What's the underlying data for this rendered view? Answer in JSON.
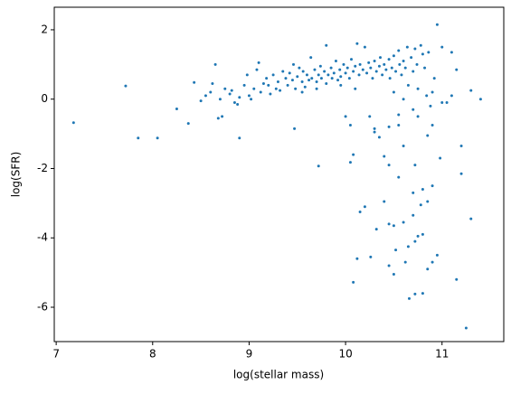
{
  "chart_data": {
    "type": "scatter",
    "xlabel": "log(stellar mass)",
    "ylabel": "log(SFR)",
    "color": "#1f77b4",
    "xlim": [
      6.98,
      11.64
    ],
    "ylim": [
      -6.99,
      2.65
    ],
    "xticks": [
      7,
      8,
      9,
      10,
      11
    ],
    "yticks": [
      -6,
      -4,
      -2,
      0,
      2
    ],
    "grid": false,
    "x": [
      7.18,
      7.72,
      7.85,
      8.05,
      8.25,
      8.37,
      8.43,
      8.65,
      8.68,
      8.9,
      9.47,
      9.72,
      10.05,
      10.08,
      10.15,
      10.12,
      10.08,
      10.26,
      10.2,
      10.32,
      10.4,
      10.45,
      10.5,
      10.45,
      10.5,
      10.52,
      10.6,
      10.65,
      10.62,
      10.66,
      10.72,
      10.8,
      10.85,
      10.9,
      10.95,
      10.75,
      10.8,
      10.72,
      10.7,
      10.78,
      10.85,
      10.7,
      10.8,
      10.9,
      10.98,
      10.72,
      10.55,
      10.4,
      10.45,
      10.6,
      10.85,
      11.25,
      11.15,
      11.2,
      11.2,
      11.3,
      10.35,
      10.25,
      10.3,
      10.45,
      10.55,
      10.0,
      10.05,
      10.55,
      10.75,
      10.9,
      11.0,
      11.05,
      11.1,
      11.3,
      11.4,
      10.95,
      11.0,
      11.1,
      11.15,
      8.5,
      8.55,
      8.6,
      8.62,
      8.7,
      8.72,
      8.75,
      8.8,
      8.82,
      8.85,
      8.88,
      8.9,
      8.95,
      8.98,
      9.0,
      9.02,
      9.05,
      9.08,
      9.1,
      9.12,
      9.15,
      9.18,
      9.2,
      9.22,
      9.25,
      9.28,
      9.3,
      9.32,
      9.35,
      9.38,
      9.4,
      9.42,
      9.45,
      9.46,
      9.48,
      9.5,
      9.52,
      9.55,
      9.56,
      9.58,
      9.6,
      9.62,
      9.64,
      9.65,
      9.68,
      9.7,
      9.72,
      9.74,
      9.75,
      9.78,
      9.8,
      9.8,
      9.82,
      9.85,
      9.86,
      9.88,
      9.9,
      9.92,
      9.94,
      9.95,
      9.98,
      10.0,
      10.02,
      10.04,
      10.06,
      10.08,
      10.1,
      10.12,
      10.14,
      10.15,
      10.18,
      10.2,
      10.22,
      10.24,
      10.26,
      10.28,
      10.3,
      10.32,
      10.35,
      10.36,
      10.38,
      10.4,
      10.42,
      10.45,
      10.46,
      10.48,
      10.5,
      10.52,
      10.55,
      10.56,
      10.58,
      10.6,
      10.62,
      10.64,
      10.65,
      10.68,
      10.7,
      10.72,
      10.74,
      10.75,
      10.78,
      10.8,
      10.82,
      10.84,
      10.86,
      10.88,
      10.9,
      10.92,
      10.3,
      9.7,
      9.55,
      9.95,
      10.1,
      10.5,
      10.7,
      10.6
    ],
    "values": [
      -0.68,
      0.38,
      -1.12,
      -1.12,
      -0.28,
      -0.7,
      0.48,
      1.0,
      -0.55,
      -1.12,
      -0.85,
      -1.93,
      -1.82,
      -1.6,
      -3.25,
      -4.6,
      -5.28,
      -4.55,
      -3.1,
      -3.75,
      -2.95,
      -3.6,
      -3.65,
      -4.8,
      -5.05,
      -4.35,
      -3.55,
      -4.25,
      -4.7,
      -5.75,
      -5.62,
      -5.6,
      -4.9,
      -4.7,
      -4.5,
      -3.95,
      -3.9,
      -4.1,
      -3.35,
      -3.05,
      -2.95,
      -2.7,
      -2.6,
      -2.5,
      -1.7,
      -1.9,
      -2.25,
      -1.65,
      -1.9,
      -1.35,
      -1.05,
      -6.6,
      -5.2,
      -2.15,
      -1.35,
      -3.45,
      -1.1,
      -0.5,
      -0.85,
      -0.8,
      -0.45,
      -0.5,
      -0.75,
      -0.75,
      -0.5,
      -0.75,
      -0.1,
      -0.1,
      0.1,
      0.25,
      0.0,
      2.15,
      1.5,
      1.35,
      0.85,
      -0.05,
      0.1,
      0.2,
      0.45,
      0.0,
      -0.5,
      0.3,
      0.15,
      0.25,
      -0.1,
      -0.15,
      0.05,
      0.4,
      0.7,
      0.1,
      0.0,
      0.3,
      0.85,
      1.05,
      0.2,
      0.45,
      0.6,
      0.4,
      0.15,
      0.7,
      0.3,
      0.5,
      0.25,
      0.8,
      0.6,
      0.4,
      0.75,
      0.55,
      1.0,
      0.3,
      0.65,
      0.9,
      0.5,
      0.8,
      0.35,
      0.7,
      0.55,
      1.2,
      0.6,
      0.85,
      0.5,
      0.7,
      0.95,
      0.6,
      0.8,
      1.55,
      0.45,
      0.7,
      0.9,
      0.6,
      0.75,
      1.1,
      0.55,
      0.85,
      0.65,
      1.0,
      0.75,
      0.9,
      0.6,
      1.15,
      0.8,
      0.95,
      1.6,
      0.7,
      1.0,
      0.85,
      1.5,
      0.75,
      1.05,
      0.9,
      0.6,
      1.1,
      0.8,
      0.95,
      1.2,
      0.7,
      1.0,
      0.85,
      1.15,
      0.6,
      0.9,
      1.25,
      0.8,
      1.4,
      1.0,
      0.7,
      1.1,
      0.9,
      1.5,
      0.4,
      1.2,
      0.8,
      1.45,
      1.0,
      0.3,
      1.55,
      1.3,
      0.9,
      0.1,
      1.35,
      -0.2,
      0.2,
      0.6,
      -0.95,
      0.3,
      0.2,
      0.4,
      0.3,
      0.2,
      -0.3,
      0.0
    ]
  }
}
